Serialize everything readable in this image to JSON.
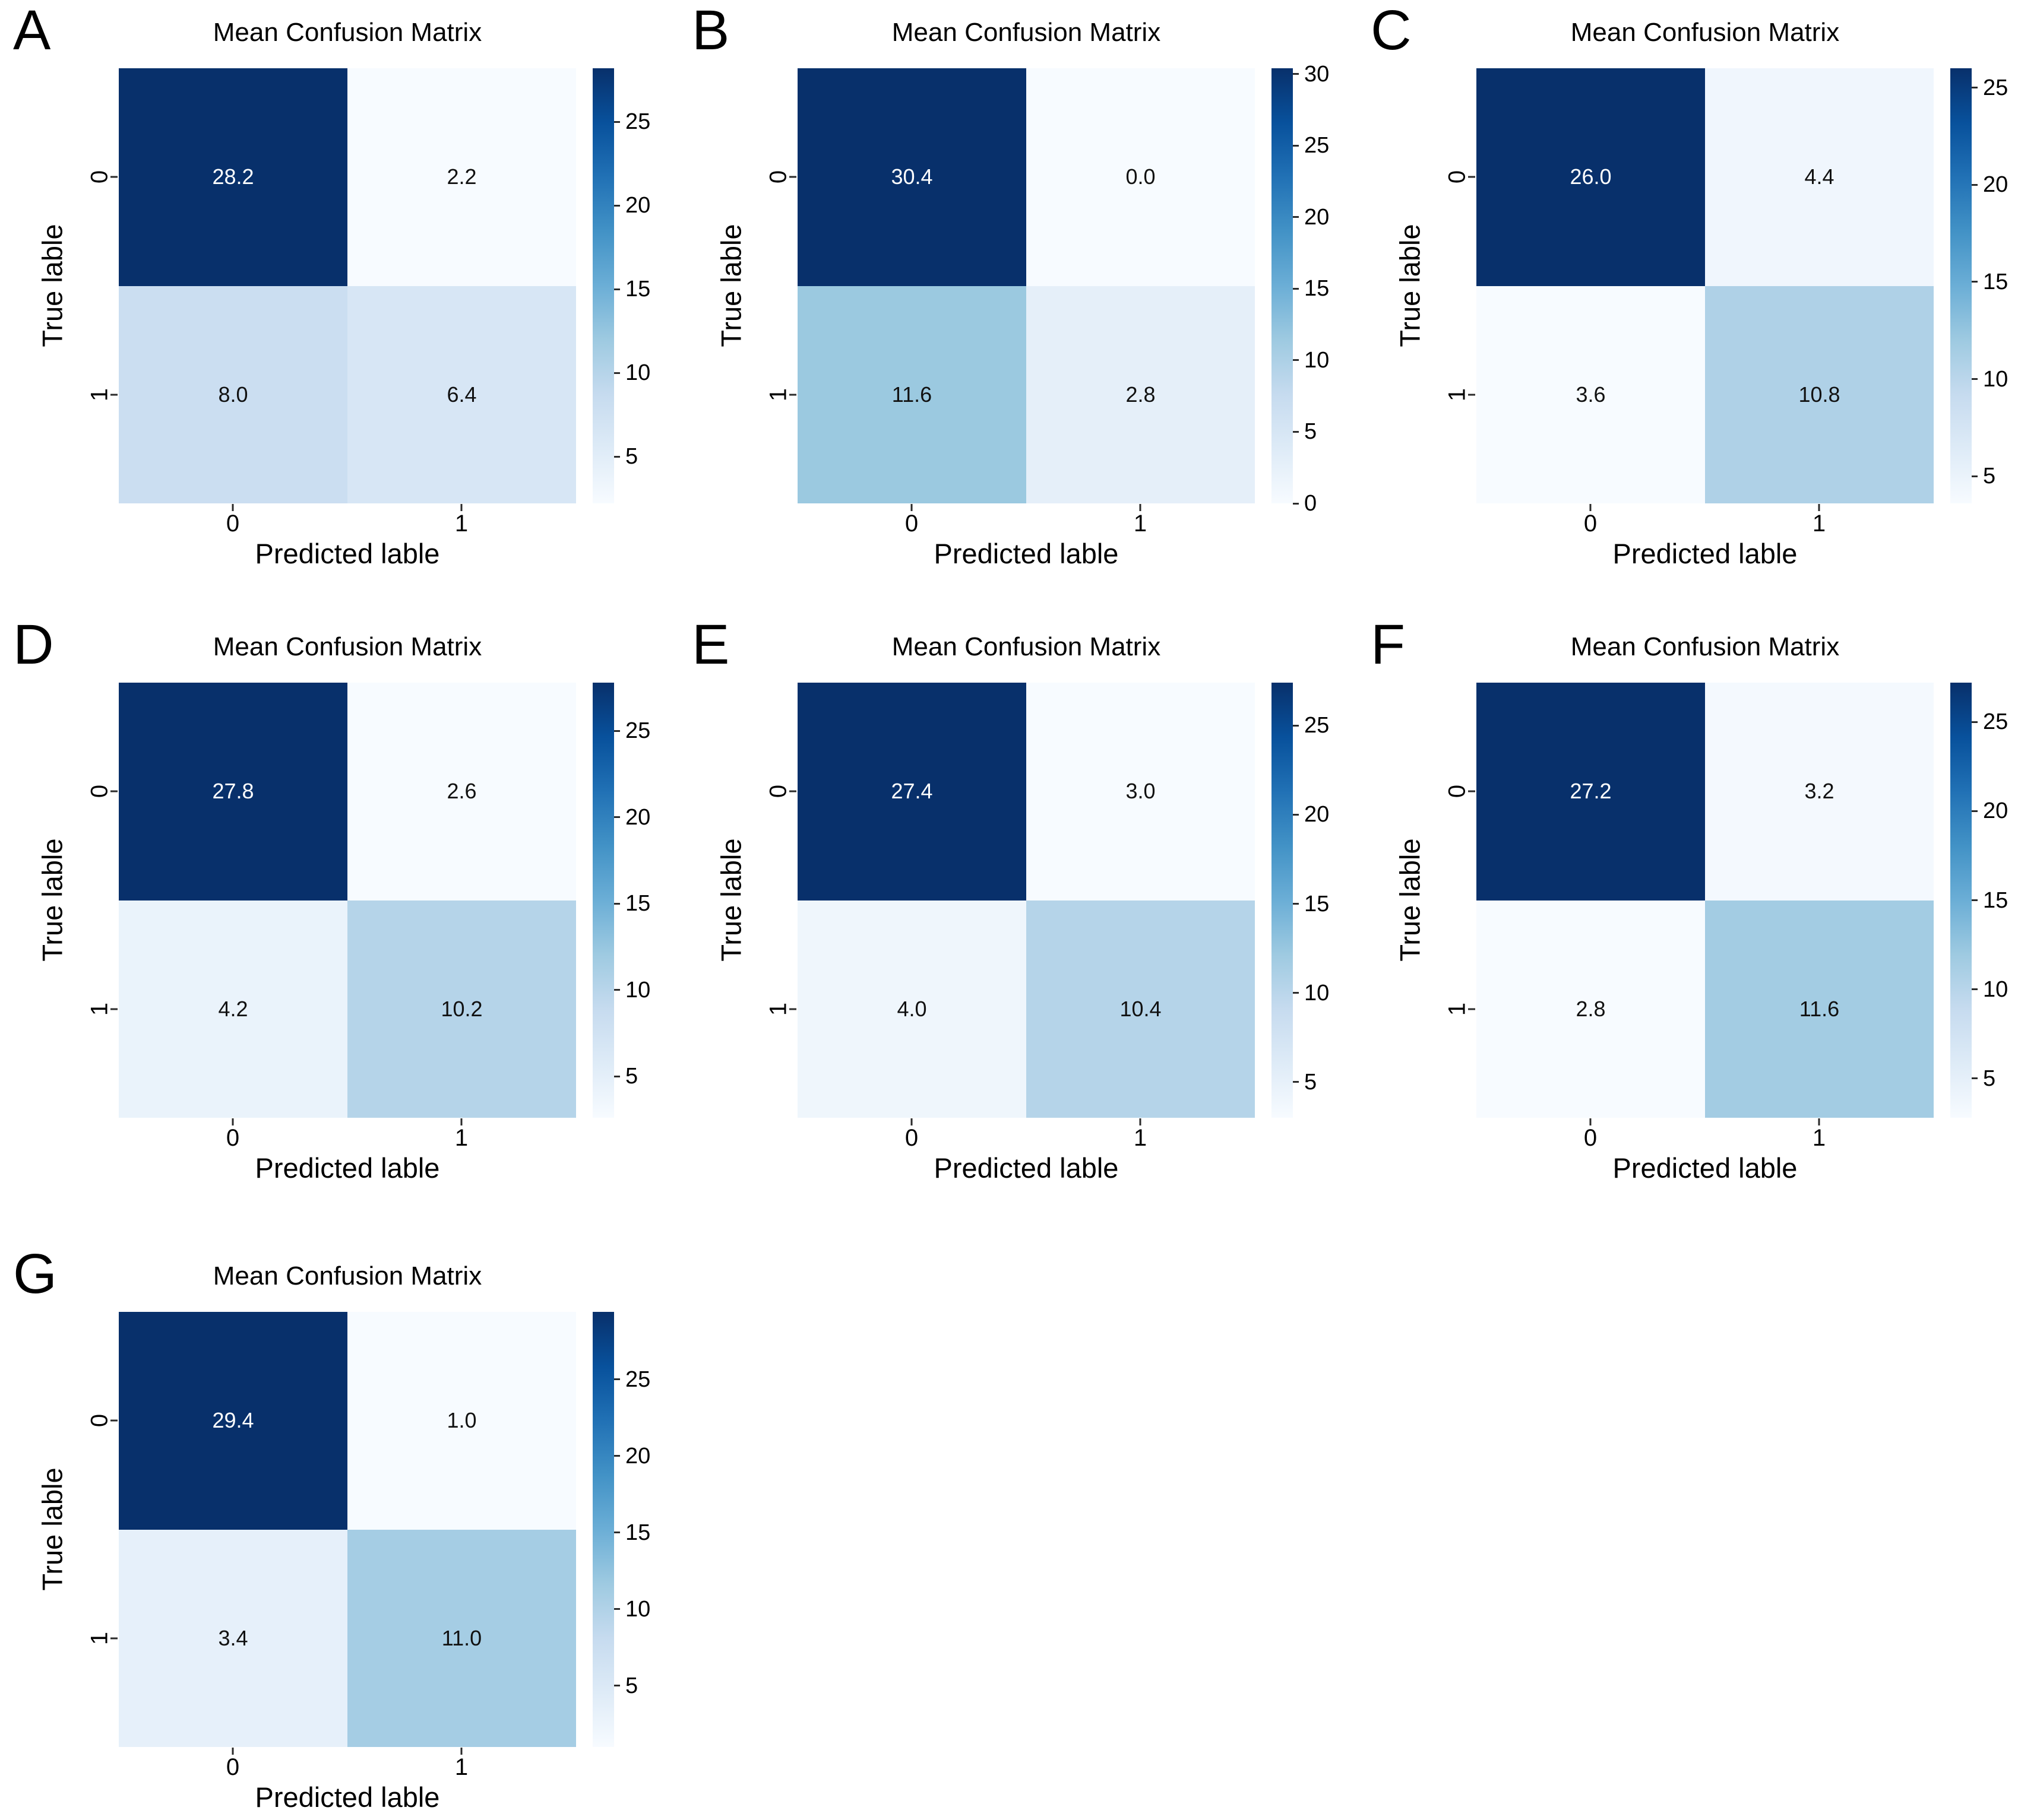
{
  "figure": {
    "background": "#ffffff",
    "colormap": "Blues",
    "colormap_dark_hex": "#08306b",
    "colormap_light_hex": "#f7fbff",
    "panel_letters": [
      "A",
      "B",
      "C",
      "D",
      "E",
      "F",
      "G"
    ]
  },
  "chart_data": [
    {
      "type": "heatmap",
      "letter": "A",
      "title": "Mean Confusion Matrix",
      "xlabel": "Predicted lable",
      "ylabel": "True lable",
      "xticklabels": [
        "0",
        "1"
      ],
      "yticklabels": [
        "0",
        "1"
      ],
      "values": [
        [
          28.2,
          2.2
        ],
        [
          8.0,
          6.4
        ]
      ],
      "labels": [
        [
          "28.2",
          "2.2"
        ],
        [
          "8.0",
          "6.4"
        ]
      ],
      "vmin": 2.2,
      "vmax": 28.2,
      "colorbar_ticks": [
        5,
        10,
        15,
        20,
        25
      ],
      "legend_position": "right-colorbar",
      "grid": false
    },
    {
      "type": "heatmap",
      "letter": "B",
      "title": "Mean Confusion Matrix",
      "xlabel": "Predicted lable",
      "ylabel": "True lable",
      "xticklabels": [
        "0",
        "1"
      ],
      "yticklabels": [
        "0",
        "1"
      ],
      "values": [
        [
          30.4,
          0.0
        ],
        [
          11.6,
          2.8
        ]
      ],
      "labels": [
        [
          "30.4",
          "0.0"
        ],
        [
          "11.6",
          "2.8"
        ]
      ],
      "vmin": 0.0,
      "vmax": 30.4,
      "colorbar_ticks": [
        0,
        5,
        10,
        15,
        20,
        25,
        30
      ],
      "legend_position": "right-colorbar",
      "grid": false
    },
    {
      "type": "heatmap",
      "letter": "C",
      "title": "Mean Confusion Matrix",
      "xlabel": "Predicted lable",
      "ylabel": "True lable",
      "xticklabels": [
        "0",
        "1"
      ],
      "yticklabels": [
        "0",
        "1"
      ],
      "values": [
        [
          26.0,
          4.4
        ],
        [
          3.6,
          10.8
        ]
      ],
      "labels": [
        [
          "26.0",
          "4.4"
        ],
        [
          "3.6",
          "10.8"
        ]
      ],
      "vmin": 3.6,
      "vmax": 26.0,
      "colorbar_ticks": [
        5,
        10,
        15,
        20,
        25
      ],
      "legend_position": "right-colorbar",
      "grid": false
    },
    {
      "type": "heatmap",
      "letter": "D",
      "title": "Mean Confusion Matrix",
      "xlabel": "Predicted lable",
      "ylabel": "True lable",
      "xticklabels": [
        "0",
        "1"
      ],
      "yticklabels": [
        "0",
        "1"
      ],
      "values": [
        [
          27.8,
          2.6
        ],
        [
          4.2,
          10.2
        ]
      ],
      "labels": [
        [
          "27.8",
          "2.6"
        ],
        [
          "4.2",
          "10.2"
        ]
      ],
      "vmin": 2.6,
      "vmax": 27.8,
      "colorbar_ticks": [
        5,
        10,
        15,
        20,
        25
      ],
      "legend_position": "right-colorbar",
      "grid": false
    },
    {
      "type": "heatmap",
      "letter": "E",
      "title": "Mean Confusion Matrix",
      "xlabel": "Predicted lable",
      "ylabel": "True lable",
      "xticklabels": [
        "0",
        "1"
      ],
      "yticklabels": [
        "0",
        "1"
      ],
      "values": [
        [
          27.4,
          3.0
        ],
        [
          4.0,
          10.4
        ]
      ],
      "labels": [
        [
          "27.4",
          "3.0"
        ],
        [
          "4.0",
          "10.4"
        ]
      ],
      "vmin": 3.0,
      "vmax": 27.4,
      "colorbar_ticks": [
        5,
        10,
        15,
        20,
        25
      ],
      "legend_position": "right-colorbar",
      "grid": false
    },
    {
      "type": "heatmap",
      "letter": "F",
      "title": "Mean Confusion Matrix",
      "xlabel": "Predicted lable",
      "ylabel": "True lable",
      "xticklabels": [
        "0",
        "1"
      ],
      "yticklabels": [
        "0",
        "1"
      ],
      "values": [
        [
          27.2,
          3.2
        ],
        [
          2.8,
          11.6
        ]
      ],
      "labels": [
        [
          "27.2",
          "3.2"
        ],
        [
          "2.8",
          "11.6"
        ]
      ],
      "vmin": 2.8,
      "vmax": 27.2,
      "colorbar_ticks": [
        5,
        10,
        15,
        20,
        25
      ],
      "legend_position": "right-colorbar",
      "grid": false
    },
    {
      "type": "heatmap",
      "letter": "G",
      "title": "Mean Confusion Matrix",
      "xlabel": "Predicted lable",
      "ylabel": "True lable",
      "xticklabels": [
        "0",
        "1"
      ],
      "yticklabels": [
        "0",
        "1"
      ],
      "values": [
        [
          29.4,
          1.0
        ],
        [
          3.4,
          11.0
        ]
      ],
      "labels": [
        [
          "29.4",
          "1.0"
        ],
        [
          "3.4",
          "11.0"
        ]
      ],
      "vmin": 1.0,
      "vmax": 29.4,
      "colorbar_ticks": [
        5,
        10,
        15,
        20,
        25
      ],
      "legend_position": "right-colorbar",
      "grid": false
    }
  ]
}
